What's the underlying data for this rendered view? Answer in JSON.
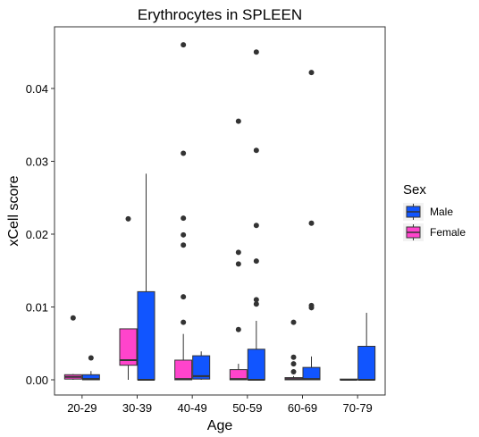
{
  "chart_data": {
    "type": "box",
    "title": "Erythrocytes in SPLEEN",
    "xlabel": "Age",
    "ylabel": "xCell score",
    "ylim": [
      -0.0025,
      0.048
    ],
    "yticks": [
      0.0,
      0.01,
      0.02,
      0.03,
      0.04
    ],
    "ytick_labels": [
      "0.00",
      "0.01",
      "0.02",
      "0.03",
      "0.04"
    ],
    "categories": [
      "20-29",
      "30-39",
      "40-49",
      "50-59",
      "60-69",
      "70-79"
    ],
    "legend": {
      "title": "Sex",
      "position": "right",
      "entries": [
        {
          "label": "Male",
          "color": "#1155FF"
        },
        {
          "label": "Female",
          "color": "#FF44CC"
        }
      ]
    },
    "series": [
      {
        "name": "Female",
        "color": "#FF44CC",
        "boxes": [
          {
            "category": "20-29",
            "q1": 0.0001,
            "median": 0.0004,
            "q3": 0.0007,
            "whisker_low": 0.0,
            "whisker_high": 0.0008,
            "outliers": [
              0.0085
            ]
          },
          {
            "category": "30-39",
            "q1": 0.002,
            "median": 0.0027,
            "q3": 0.007,
            "whisker_low": 0.0,
            "whisker_high": 0.007,
            "outliers": [
              0.0221
            ]
          },
          {
            "category": "40-49",
            "q1": 0.0,
            "median": 0.0001,
            "q3": 0.0027,
            "whisker_low": 0.0,
            "whisker_high": 0.0063,
            "outliers": [
              0.0079,
              0.0114,
              0.0185,
              0.0199,
              0.0222,
              0.0311,
              0.046
            ]
          },
          {
            "category": "50-59",
            "q1": 0.0,
            "median": 0.0001,
            "q3": 0.0014,
            "whisker_low": 0.0,
            "whisker_high": 0.0022,
            "outliers": [
              0.0069,
              0.0159,
              0.0175,
              0.0355
            ]
          },
          {
            "category": "60-69",
            "q1": 0.0,
            "median": 0.0001,
            "q3": 0.0003,
            "whisker_low": 0.0,
            "whisker_high": 0.0005,
            "outliers": [
              0.0011,
              0.0022,
              0.0031,
              0.0079
            ]
          },
          {
            "category": "70-79",
            "q1": 0.0,
            "median": 0.0,
            "q3": 0.0001,
            "whisker_low": 0.0,
            "whisker_high": 0.0001,
            "outliers": []
          }
        ]
      },
      {
        "name": "Male",
        "color": "#1155FF",
        "boxes": [
          {
            "category": "20-29",
            "q1": 0.0,
            "median": 0.0001,
            "q3": 0.0007,
            "whisker_low": 0.0,
            "whisker_high": 0.0012,
            "outliers": [
              0.003
            ]
          },
          {
            "category": "30-39",
            "q1": 0.0,
            "median": 0.0,
            "q3": 0.0121,
            "whisker_low": 0.0,
            "whisker_high": 0.0283,
            "outliers": []
          },
          {
            "category": "40-49",
            "q1": 0.0001,
            "median": 0.0005,
            "q3": 0.0033,
            "whisker_low": 0.0,
            "whisker_high": 0.0039,
            "outliers": []
          },
          {
            "category": "50-59",
            "q1": 0.0,
            "median": 0.0,
            "q3": 0.0042,
            "whisker_low": 0.0,
            "whisker_high": 0.0081,
            "outliers": [
              0.0104,
              0.011,
              0.0163,
              0.0212,
              0.0315,
              0.045
            ]
          },
          {
            "category": "60-69",
            "q1": 0.0,
            "median": 0.0001,
            "q3": 0.0017,
            "whisker_low": 0.0,
            "whisker_high": 0.0032,
            "outliers": [
              0.0099,
              0.0102,
              0.0215,
              0.0422
            ]
          },
          {
            "category": "70-79",
            "q1": 0.0,
            "median": 0.0,
            "q3": 0.0046,
            "whisker_low": 0.0,
            "whisker_high": 0.0092,
            "outliers": []
          }
        ]
      }
    ]
  }
}
